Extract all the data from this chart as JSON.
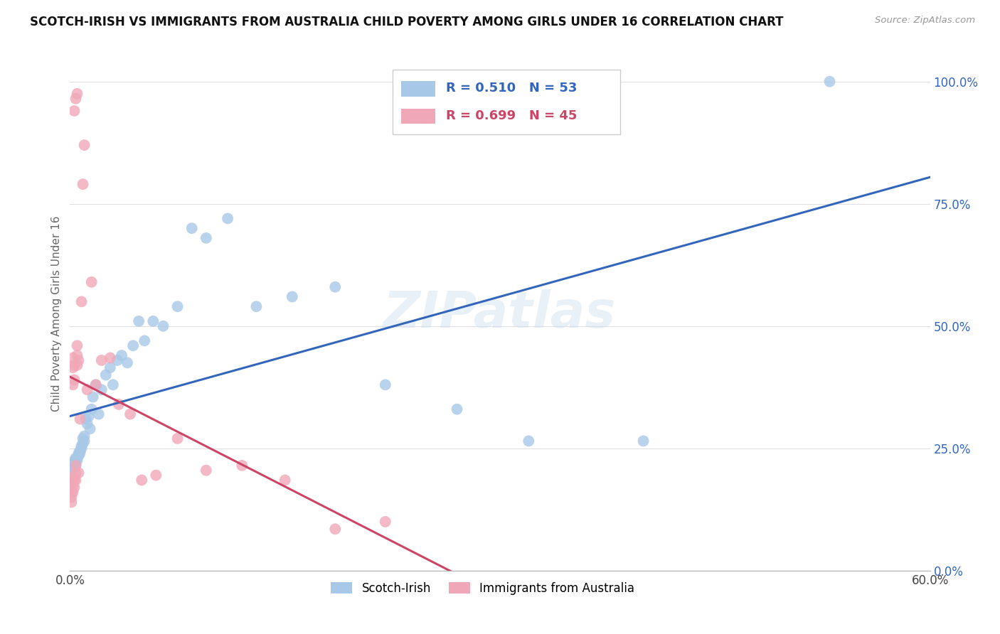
{
  "title": "SCOTCH-IRISH VS IMMIGRANTS FROM AUSTRALIA CHILD POVERTY AMONG GIRLS UNDER 16 CORRELATION CHART",
  "source": "Source: ZipAtlas.com",
  "ylabel": "Child Poverty Among Girls Under 16",
  "blue_R": "R = 0.510",
  "blue_N": "N = 53",
  "pink_R": "R = 0.699",
  "pink_N": "N = 45",
  "blue_color": "#a8c8e8",
  "pink_color": "#f0a8b8",
  "blue_line_color": "#3366bb",
  "pink_line_color": "#cc4466",
  "watermark_text": "ZIPatlas",
  "legend_label_blue": "Scotch-Irish",
  "legend_label_pink": "Immigrants from Australia",
  "xlim": [
    0.0,
    0.6
  ],
  "ylim": [
    0.0,
    1.05
  ],
  "xticks": [
    0.0,
    0.1,
    0.2,
    0.3,
    0.4,
    0.5,
    0.6
  ],
  "xticklabels": [
    "0.0%",
    "",
    "",
    "",
    "",
    "",
    "60.0%"
  ],
  "yticks": [
    0.0,
    0.25,
    0.5,
    0.75,
    1.0
  ],
  "yticklabels": [
    "0.0%",
    "25.0%",
    "50.0%",
    "75.0%",
    "100.0%"
  ],
  "blue_x": [
    0.001,
    0.001,
    0.002,
    0.002,
    0.002,
    0.003,
    0.003,
    0.004,
    0.004,
    0.005,
    0.005,
    0.006,
    0.006,
    0.007,
    0.007,
    0.008,
    0.008,
    0.009,
    0.009,
    0.01,
    0.01,
    0.011,
    0.012,
    0.013,
    0.014,
    0.015,
    0.016,
    0.018,
    0.02,
    0.022,
    0.025,
    0.028,
    0.03,
    0.033,
    0.036,
    0.04,
    0.044,
    0.048,
    0.052,
    0.058,
    0.065,
    0.075,
    0.085,
    0.095,
    0.11,
    0.13,
    0.155,
    0.185,
    0.22,
    0.27,
    0.32,
    0.4,
    0.53
  ],
  "blue_y": [
    0.205,
    0.215,
    0.21,
    0.22,
    0.215,
    0.22,
    0.225,
    0.215,
    0.23,
    0.225,
    0.23,
    0.24,
    0.235,
    0.245,
    0.24,
    0.25,
    0.255,
    0.27,
    0.26,
    0.265,
    0.275,
    0.31,
    0.3,
    0.315,
    0.29,
    0.33,
    0.355,
    0.38,
    0.32,
    0.37,
    0.4,
    0.415,
    0.38,
    0.43,
    0.44,
    0.425,
    0.46,
    0.51,
    0.47,
    0.51,
    0.5,
    0.54,
    0.7,
    0.68,
    0.72,
    0.54,
    0.56,
    0.58,
    0.38,
    0.33,
    0.265,
    0.265,
    1.0
  ],
  "pink_x": [
    0.001,
    0.001,
    0.001,
    0.001,
    0.001,
    0.002,
    0.002,
    0.002,
    0.002,
    0.002,
    0.002,
    0.003,
    0.003,
    0.003,
    0.003,
    0.004,
    0.004,
    0.004,
    0.005,
    0.005,
    0.005,
    0.006,
    0.006,
    0.007,
    0.008,
    0.009,
    0.01,
    0.012,
    0.015,
    0.018,
    0.022,
    0.028,
    0.034,
    0.042,
    0.05,
    0.06,
    0.075,
    0.095,
    0.12,
    0.15,
    0.185,
    0.22,
    0.003,
    0.004,
    0.005
  ],
  "pink_y": [
    0.14,
    0.15,
    0.16,
    0.17,
    0.18,
    0.16,
    0.175,
    0.19,
    0.38,
    0.415,
    0.435,
    0.17,
    0.185,
    0.39,
    0.42,
    0.185,
    0.2,
    0.215,
    0.42,
    0.44,
    0.46,
    0.43,
    0.2,
    0.31,
    0.55,
    0.79,
    0.87,
    0.37,
    0.59,
    0.38,
    0.43,
    0.435,
    0.34,
    0.32,
    0.185,
    0.195,
    0.27,
    0.205,
    0.215,
    0.185,
    0.085,
    0.1,
    0.94,
    0.965,
    0.975
  ]
}
